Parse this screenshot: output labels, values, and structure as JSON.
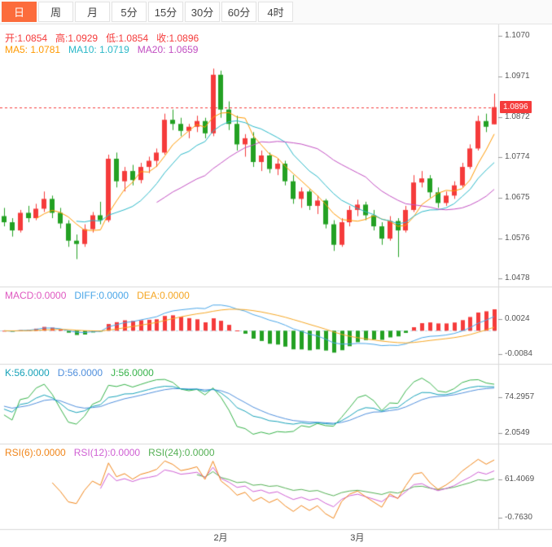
{
  "tabs": [
    {
      "label": "日",
      "active": true
    },
    {
      "label": "周",
      "active": false
    },
    {
      "label": "月",
      "active": false
    },
    {
      "label": "5分",
      "active": false
    },
    {
      "label": "15分",
      "active": false
    },
    {
      "label": "30分",
      "active": false
    },
    {
      "label": "60分",
      "active": false
    },
    {
      "label": "4时",
      "active": false
    }
  ],
  "colors": {
    "accent": "#fc6c3c",
    "up": "#f53b3b",
    "down": "#23a123",
    "ma5": "#ff9900",
    "ma10": "#2ab8c8",
    "ma20": "#c24fc2",
    "macd": "#df58c0",
    "diff": "#4aa6e8",
    "dea": "#f5a623",
    "k": "#17a2b8",
    "d": "#4f8fdc",
    "j": "#37b34a",
    "rsi6": "#f08519",
    "rsi12": "#cf5fd3",
    "rsi24": "#54b054",
    "axis_text": "#555555",
    "separator": "#d9d9d9"
  },
  "main": {
    "legend_ohlc": [
      "开:1.0854",
      "高:1.0929",
      "低:1.0854",
      "收:1.0896"
    ],
    "legend_ma": [
      "MA5: 1.0781",
      "MA10: 1.0719",
      "MA20: 1.0659"
    ],
    "price_tag": "1.0896"
  },
  "macd": {
    "legend": [
      "MACD:0.0000",
      "DIFF:0.0000",
      "DEA:0.0000"
    ]
  },
  "kdj": {
    "legend": [
      "K:56.0000",
      "D:56.0000",
      "J:56.0000"
    ]
  },
  "rsi": {
    "legend": [
      "RSI(6):0.0000",
      "RSI(12):0.0000",
      "RSI(24):0.0000"
    ]
  },
  "chart_data": {
    "type": "candlestick",
    "panels": [
      "price+MA(5,10,20)",
      "MACD(12,26,9)",
      "KDJ(9,3,3)",
      "RSI(6,12,24)"
    ],
    "y_axis_labels": {
      "price": [
        "1.1070",
        "1.0971",
        "1.0872",
        "1.0774",
        "1.0675",
        "1.0576",
        "1.0478"
      ],
      "macd": [
        "0.0024",
        "-0.0084"
      ],
      "kdj": [
        "74.2957",
        "2.0549"
      ],
      "rsi": [
        "61.4069",
        "-0.7630"
      ]
    },
    "x_axis_ticks": [
      {
        "label": "2月",
        "index": 27
      },
      {
        "label": "3月",
        "index": 44
      }
    ],
    "price_line": 1.0896,
    "ylim": [
      1.0478,
      1.107
    ],
    "candles": [
      [
        1.063,
        1.065,
        1.0605,
        1.0615
      ],
      [
        1.0615,
        1.0625,
        1.058,
        1.0595
      ],
      [
        1.0595,
        1.0645,
        1.059,
        1.0638
      ],
      [
        1.0638,
        1.0655,
        1.0615,
        1.0625
      ],
      [
        1.0625,
        1.066,
        1.062,
        1.0648
      ],
      [
        1.0648,
        1.069,
        1.064,
        1.0672
      ],
      [
        1.0672,
        1.068,
        1.0625,
        1.0638
      ],
      [
        1.0638,
        1.065,
        1.06,
        1.0612
      ],
      [
        1.0612,
        1.062,
        1.0555,
        1.057
      ],
      [
        1.057,
        1.0585,
        1.0525,
        1.0562
      ],
      [
        1.0562,
        1.061,
        1.0555,
        1.0598
      ],
      [
        1.0598,
        1.064,
        1.059,
        1.0632
      ],
      [
        1.0632,
        1.0665,
        1.061,
        1.062
      ],
      [
        1.062,
        1.078,
        1.0615,
        1.077
      ],
      [
        1.077,
        1.0785,
        1.07,
        1.0715
      ],
      [
        1.0715,
        1.075,
        1.069,
        1.074
      ],
      [
        1.074,
        1.0755,
        1.0705,
        1.0718
      ],
      [
        1.0718,
        1.076,
        1.071,
        1.075
      ],
      [
        1.075,
        1.0775,
        1.0735,
        1.0765
      ],
      [
        1.0765,
        1.0795,
        1.075,
        1.0785
      ],
      [
        1.0785,
        1.088,
        1.078,
        1.0865
      ],
      [
        1.0865,
        1.089,
        1.084,
        1.0855
      ],
      [
        1.0855,
        1.087,
        1.0825,
        1.0838
      ],
      [
        1.0838,
        1.0855,
        1.082,
        1.0848
      ],
      [
        1.0848,
        1.0875,
        1.0835,
        1.0862
      ],
      [
        1.0862,
        1.087,
        1.082,
        1.0832
      ],
      [
        1.0832,
        1.099,
        1.0825,
        1.0975
      ],
      [
        1.0975,
        1.0985,
        1.087,
        1.089
      ],
      [
        1.089,
        1.091,
        1.084,
        1.0855
      ],
      [
        1.0855,
        1.0875,
        1.079,
        1.0805
      ],
      [
        1.0805,
        1.083,
        1.0775,
        1.082
      ],
      [
        1.082,
        1.0835,
        1.075,
        1.0762
      ],
      [
        1.0762,
        1.079,
        1.074,
        1.0778
      ],
      [
        1.0778,
        1.0785,
        1.0735,
        1.0745
      ],
      [
        1.0745,
        1.077,
        1.073,
        1.0758
      ],
      [
        1.0758,
        1.0765,
        1.0705,
        1.0715
      ],
      [
        1.0715,
        1.073,
        1.066,
        1.0672
      ],
      [
        1.0672,
        1.07,
        1.065,
        1.069
      ],
      [
        1.069,
        1.0695,
        1.0645,
        1.0655
      ],
      [
        1.0655,
        1.068,
        1.0635,
        1.0668
      ],
      [
        1.0668,
        1.0672,
        1.06,
        1.061
      ],
      [
        1.061,
        1.062,
        1.0545,
        1.056
      ],
      [
        1.056,
        1.0625,
        1.0555,
        1.0615
      ],
      [
        1.0615,
        1.0655,
        1.0605,
        1.0645
      ],
      [
        1.0645,
        1.067,
        1.063,
        1.0658
      ],
      [
        1.0658,
        1.0665,
        1.062,
        1.0632
      ],
      [
        1.0632,
        1.0645,
        1.0595,
        1.0605
      ],
      [
        1.0605,
        1.0615,
        1.056,
        1.0575
      ],
      [
        1.0575,
        1.063,
        1.057,
        1.0618
      ],
      [
        1.0618,
        1.0625,
        1.053,
        1.0595
      ],
      [
        1.0595,
        1.0655,
        1.059,
        1.0645
      ],
      [
        1.0645,
        1.073,
        1.064,
        1.0712
      ],
      [
        1.0712,
        1.074,
        1.07,
        1.0722
      ],
      [
        1.0722,
        1.073,
        1.0675,
        1.0688
      ],
      [
        1.0688,
        1.07,
        1.065,
        1.0662
      ],
      [
        1.0662,
        1.069,
        1.0655,
        1.068
      ],
      [
        1.068,
        1.0715,
        1.0672,
        1.0705
      ],
      [
        1.0705,
        1.076,
        1.07,
        1.075
      ],
      [
        1.075,
        1.0805,
        1.0745,
        1.0795
      ],
      [
        1.0795,
        1.0875,
        1.079,
        1.0862
      ],
      [
        1.0862,
        1.088,
        1.0835,
        1.0848
      ],
      [
        1.0854,
        1.0929,
        1.0854,
        1.0896
      ]
    ]
  }
}
